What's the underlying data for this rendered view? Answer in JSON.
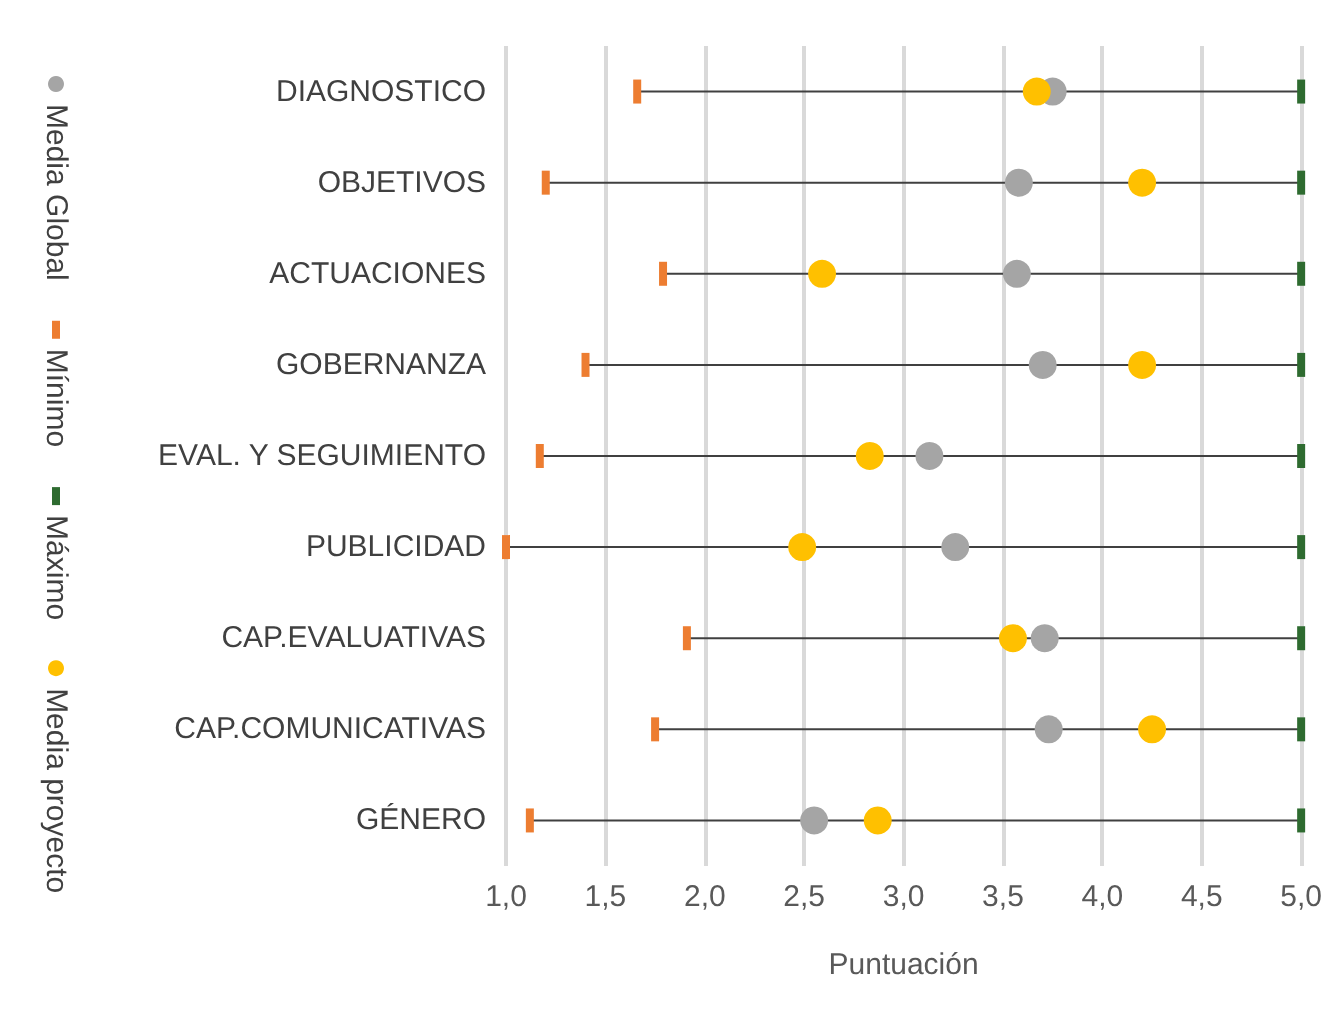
{
  "chart_data": {
    "type": "scatter",
    "xlabel": "Puntuación",
    "categories": [
      "DIAGNOSTICO",
      "OBJETIVOS",
      "ACTUACIONES",
      "GOBERNANZA",
      "EVAL. Y SEGUIMIENTO",
      "PUBLICIDAD",
      "CAP.EVALUATIVAS",
      "CAP.COMUNICATIVAS",
      "GÉNERO"
    ],
    "orientation": "horizontal",
    "xlim": [
      1,
      5
    ],
    "xticks": [
      {
        "value": 1,
        "label": "1,0"
      },
      {
        "value": 1.5,
        "label": "1,5"
      },
      {
        "value": 2,
        "label": "2,0"
      },
      {
        "value": 2.5,
        "label": "2,5"
      },
      {
        "value": 3,
        "label": "3,0"
      },
      {
        "value": 3.5,
        "label": "3,5"
      },
      {
        "value": 4,
        "label": "4,0"
      },
      {
        "value": 4.5,
        "label": "4,5"
      },
      {
        "value": 5,
        "label": "5,0"
      }
    ],
    "grid": "x",
    "legend": "left",
    "marker": "circle",
    "series": [
      {
        "name": "Media Global",
        "color": "#a5a5a5",
        "values": [
          3.75,
          3.58,
          3.57,
          3.7,
          3.13,
          3.26,
          3.71,
          3.73,
          2.55
        ]
      },
      {
        "name": "Mínimo",
        "color": "#ed7d31",
        "marker": "square",
        "values": [
          1.66,
          1.2,
          1.79,
          1.4,
          1.17,
          1.0,
          1.91,
          1.75,
          1.12
        ]
      },
      {
        "name": "Máximo",
        "color": "#2e6b30",
        "marker": "square",
        "values": [
          5,
          5,
          5,
          5,
          5,
          5,
          5,
          5,
          5
        ]
      },
      {
        "name": "Media proyecto",
        "color": "#ffc000",
        "values": [
          3.67,
          4.2,
          2.59,
          4.2,
          2.83,
          2.49,
          3.55,
          4.25,
          2.87
        ]
      }
    ]
  }
}
